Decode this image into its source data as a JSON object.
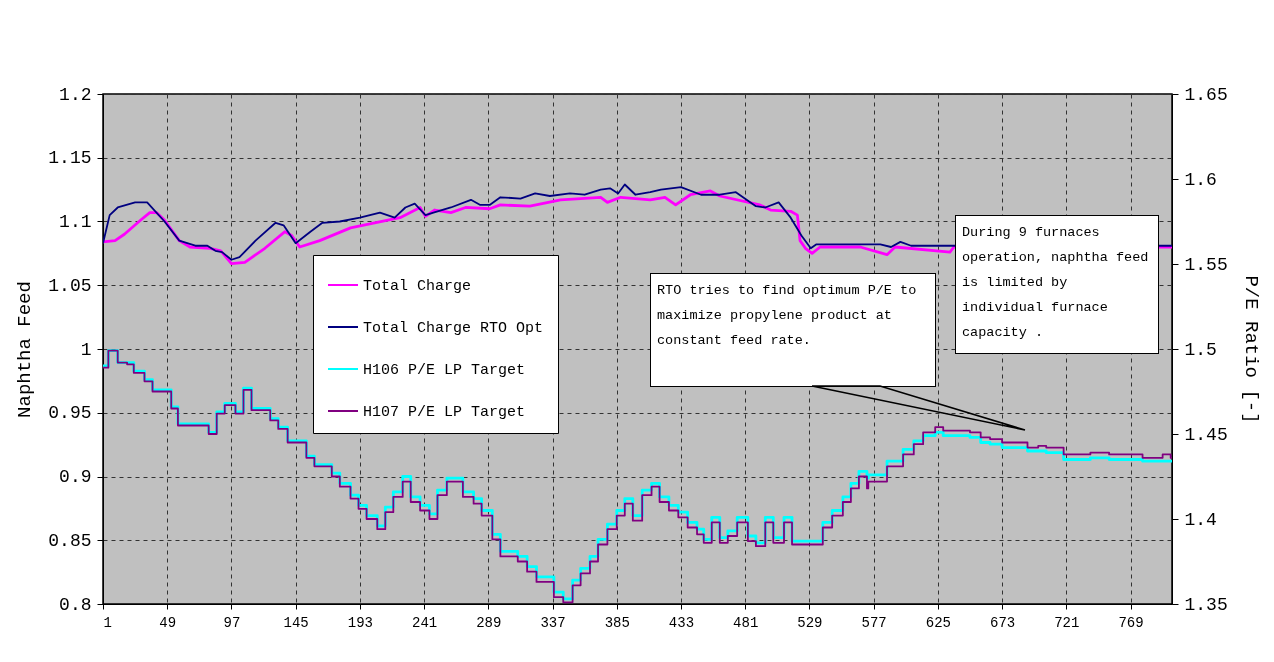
{
  "chart_data": {
    "type": "line",
    "xlim": [
      1,
      800
    ],
    "xticks": [
      1,
      49,
      97,
      145,
      193,
      241,
      289,
      337,
      385,
      433,
      481,
      529,
      577,
      625,
      673,
      721,
      769
    ],
    "ylabel": "Naphtha Feed",
    "y2label": "P/E Ratio [-]",
    "ylim": [
      0.8,
      1.2
    ],
    "yticks": [
      0.8,
      0.85,
      0.9,
      0.95,
      1,
      1.05,
      1.1,
      1.15,
      1.2
    ],
    "y2lim": [
      1.35,
      1.65
    ],
    "y2ticks": [
      1.35,
      1.4,
      1.45,
      1.5,
      1.55,
      1.6,
      1.65
    ],
    "grid": true,
    "legend": "left",
    "annotations": [
      "RTO tries to find optimum P/E to maximize propylene product at constant feed rate.",
      "During 9 furnaces operation, naphtha feed is limited by individual furnace capacity ."
    ],
    "series": [
      {
        "name": "Total Charge",
        "color": "#ff00ff",
        "x": [
          1,
          10,
          17,
          29,
          36,
          41,
          47,
          58,
          66,
          81,
          89,
          97,
          107,
          122,
          137,
          142,
          148,
          163,
          186,
          223,
          238,
          242,
          249,
          261,
          272,
          290,
          298,
          320,
          343,
          373,
          378,
          388,
          410,
          421,
          429,
          440,
          455,
          462,
          492,
          500,
          515,
          520,
          522,
          526,
          531,
          537,
          567,
          587,
          593,
          634,
          637,
          800
        ],
        "values": [
          1.084,
          1.085,
          1.09,
          1.101,
          1.107,
          1.107,
          1.101,
          1.085,
          1.08,
          1.079,
          1.077,
          1.067,
          1.068,
          1.079,
          1.092,
          1.089,
          1.08,
          1.085,
          1.095,
          1.103,
          1.111,
          1.104,
          1.109,
          1.107,
          1.111,
          1.11,
          1.113,
          1.112,
          1.117,
          1.119,
          1.115,
          1.119,
          1.117,
          1.119,
          1.113,
          1.121,
          1.124,
          1.12,
          1.113,
          1.109,
          1.108,
          1.105,
          1.085,
          1.079,
          1.075,
          1.08,
          1.08,
          1.074,
          1.08,
          1.076,
          1.08,
          1.08
        ]
      },
      {
        "name": "Total Charge RTO Opt",
        "color": "#000080",
        "x": [
          1,
          6,
          12,
          25,
          34,
          47,
          58,
          70,
          79,
          85,
          90,
          97,
          103,
          115,
          130,
          136,
          145,
          156,
          165,
          178,
          193,
          208,
          219,
          227,
          234,
          242,
          248,
          261,
          276,
          283,
          290,
          298,
          313,
          324,
          335,
          350,
          361,
          373,
          380,
          386,
          391,
          399,
          410,
          418,
          433,
          448,
          462,
          474,
          489,
          496,
          506,
          515,
          523,
          530,
          534,
          582,
          590,
          597,
          605,
          800
        ],
        "values": [
          1.083,
          1.105,
          1.111,
          1.115,
          1.115,
          1.1,
          1.085,
          1.081,
          1.081,
          1.077,
          1.076,
          1.07,
          1.072,
          1.085,
          1.099,
          1.097,
          1.083,
          1.092,
          1.099,
          1.1,
          1.103,
          1.107,
          1.103,
          1.111,
          1.114,
          1.105,
          1.107,
          1.111,
          1.117,
          1.113,
          1.113,
          1.119,
          1.118,
          1.122,
          1.12,
          1.122,
          1.121,
          1.125,
          1.126,
          1.122,
          1.129,
          1.121,
          1.123,
          1.125,
          1.127,
          1.121,
          1.121,
          1.123,
          1.112,
          1.111,
          1.115,
          1.103,
          1.089,
          1.079,
          1.082,
          1.082,
          1.08,
          1.084,
          1.081,
          1.081
        ]
      },
      {
        "name": "H106 P/E LP Target",
        "color": "#00ffff",
        "type": "step",
        "axis": "y2",
        "x": [
          1,
          5,
          12,
          19,
          24,
          32,
          38,
          52,
          57,
          80,
          86,
          92,
          100,
          106,
          112,
          126,
          132,
          139,
          153,
          159,
          172,
          178,
          186,
          192,
          198,
          206,
          212,
          218,
          225,
          231,
          238,
          245,
          251,
          258,
          270,
          278,
          284,
          292,
          298,
          311,
          318,
          325,
          338,
          345,
          352,
          358,
          365,
          371,
          378,
          385,
          391,
          397,
          404,
          411,
          417,
          424,
          431,
          438,
          445,
          450,
          456,
          462,
          468,
          475,
          483,
          489,
          496,
          502,
          510,
          516,
          539,
          546,
          554,
          560,
          566,
          572,
          573,
          587,
          599,
          607,
          614,
          623,
          629,
          643,
          649,
          657,
          664,
          673,
          692,
          700,
          706,
          719,
          739,
          753,
          778,
          793,
          799,
          800
        ],
        "values": [
          1.49,
          1.499,
          1.492,
          1.492,
          1.487,
          1.482,
          1.476,
          1.466,
          1.456,
          1.451,
          1.463,
          1.468,
          1.463,
          1.477,
          1.465,
          1.459,
          1.454,
          1.446,
          1.437,
          1.432,
          1.427,
          1.421,
          1.414,
          1.408,
          1.402,
          1.396,
          1.407,
          1.416,
          1.425,
          1.413,
          1.408,
          1.403,
          1.417,
          1.424,
          1.416,
          1.412,
          1.405,
          1.391,
          1.381,
          1.378,
          1.372,
          1.366,
          1.357,
          1.353,
          1.364,
          1.371,
          1.378,
          1.388,
          1.397,
          1.405,
          1.412,
          1.402,
          1.417,
          1.421,
          1.413,
          1.408,
          1.404,
          1.398,
          1.394,
          1.388,
          1.401,
          1.389,
          1.393,
          1.401,
          1.39,
          1.386,
          1.401,
          1.389,
          1.401,
          1.387,
          1.398,
          1.405,
          1.413,
          1.421,
          1.428,
          1.424,
          1.426,
          1.434,
          1.441,
          1.446,
          1.449,
          1.451,
          1.449,
          1.449,
          1.448,
          1.445,
          1.444,
          1.442,
          1.44,
          1.44,
          1.439,
          1.435,
          1.436,
          1.435,
          1.434,
          1.434,
          1.434,
          1.434
        ]
      },
      {
        "name": "H107 P/E LP Target",
        "color": "#800080",
        "type": "step",
        "axis": "y2",
        "x": [
          1,
          5,
          12,
          19,
          24,
          32,
          38,
          52,
          57,
          80,
          86,
          92,
          100,
          106,
          112,
          126,
          132,
          139,
          153,
          159,
          172,
          178,
          186,
          192,
          198,
          206,
          212,
          218,
          225,
          231,
          238,
          245,
          251,
          258,
          270,
          278,
          284,
          292,
          298,
          311,
          318,
          325,
          338,
          345,
          352,
          358,
          365,
          371,
          378,
          385,
          391,
          397,
          404,
          411,
          417,
          424,
          431,
          438,
          445,
          450,
          456,
          462,
          468,
          475,
          483,
          489,
          496,
          502,
          510,
          516,
          539,
          546,
          554,
          560,
          566,
          572,
          573,
          587,
          599,
          607,
          614,
          623,
          629,
          643,
          649,
          657,
          664,
          673,
          692,
          700,
          706,
          719,
          739,
          753,
          778,
          793,
          799,
          800
        ],
        "values": [
          1.489,
          1.499,
          1.492,
          1.491,
          1.486,
          1.481,
          1.475,
          1.465,
          1.455,
          1.45,
          1.462,
          1.467,
          1.462,
          1.476,
          1.464,
          1.458,
          1.453,
          1.445,
          1.436,
          1.431,
          1.425,
          1.419,
          1.412,
          1.406,
          1.4,
          1.394,
          1.404,
          1.413,
          1.422,
          1.41,
          1.405,
          1.4,
          1.414,
          1.422,
          1.413,
          1.409,
          1.402,
          1.388,
          1.378,
          1.375,
          1.369,
          1.363,
          1.354,
          1.351,
          1.361,
          1.368,
          1.375,
          1.385,
          1.394,
          1.402,
          1.409,
          1.399,
          1.414,
          1.419,
          1.41,
          1.405,
          1.401,
          1.395,
          1.391,
          1.386,
          1.398,
          1.386,
          1.39,
          1.398,
          1.387,
          1.384,
          1.398,
          1.386,
          1.398,
          1.385,
          1.395,
          1.402,
          1.41,
          1.418,
          1.425,
          1.418,
          1.422,
          1.431,
          1.438,
          1.444,
          1.451,
          1.454,
          1.452,
          1.452,
          1.451,
          1.448,
          1.447,
          1.445,
          1.442,
          1.443,
          1.442,
          1.438,
          1.439,
          1.438,
          1.436,
          1.438,
          1.436,
          1.436
        ]
      }
    ]
  }
}
